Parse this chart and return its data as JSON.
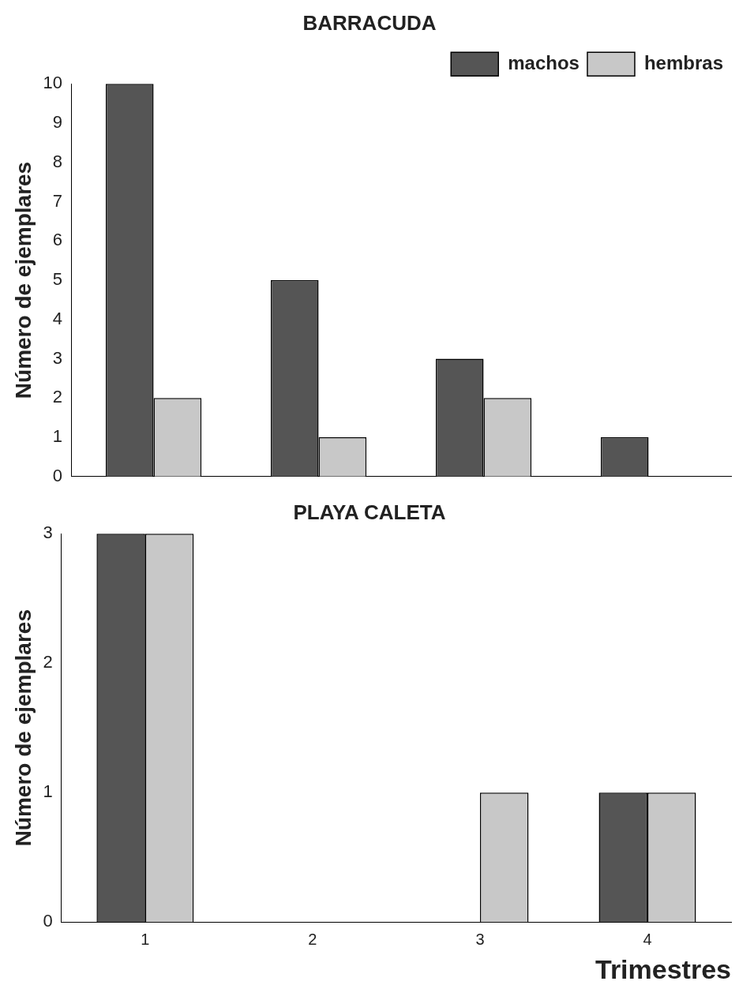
{
  "chart_data": [
    {
      "type": "bar",
      "title": "BARRACUDA",
      "ylabel": "Número de ejemplares",
      "categories": [
        "1",
        "2",
        "3",
        "4"
      ],
      "series": [
        {
          "name": "machos",
          "color": "#555555",
          "values": [
            10,
            5,
            3,
            1
          ]
        },
        {
          "name": "hembras",
          "color": "#c8c8c8",
          "values": [
            2,
            1,
            2,
            0
          ]
        }
      ],
      "ylim": [
        0,
        10
      ],
      "yticks": [
        0,
        1,
        2,
        3,
        4,
        5,
        6,
        7,
        8,
        9,
        10
      ],
      "grid": false,
      "legend": "top right",
      "tick_labels": "y"
    },
    {
      "type": "bar",
      "title": "PLAYA CALETA",
      "ylabel": "Número de ejemplares",
      "xlabel": "Trimestres",
      "categories": [
        "1",
        "2",
        "3",
        "4"
      ],
      "series": [
        {
          "color": "#555555",
          "values": [
            3,
            0,
            0,
            1
          ]
        },
        {
          "color": "#c8c8c8",
          "values": [
            3,
            0,
            1,
            1
          ]
        }
      ],
      "ylim": [
        0,
        3
      ],
      "yticks": [
        0,
        1,
        2,
        3
      ],
      "grid": false,
      "legend": false
    }
  ]
}
